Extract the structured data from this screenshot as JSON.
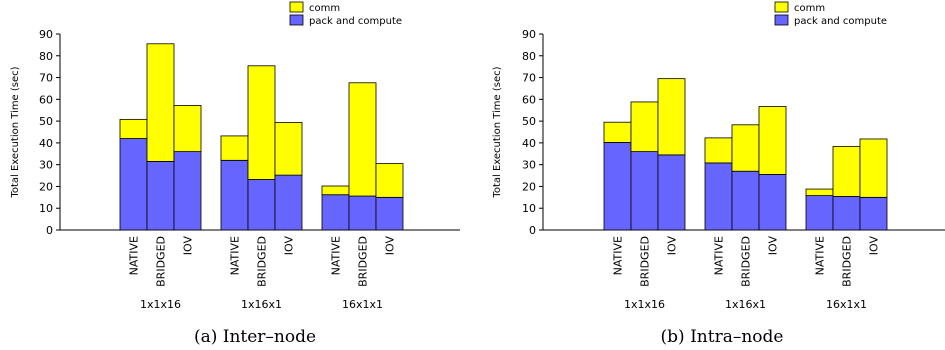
{
  "legend": {
    "items": [
      {
        "label": "comm",
        "color": "#ffff00"
      },
      {
        "label": "pack and compute",
        "color": "#6666ff"
      }
    ]
  },
  "chart_data": [
    {
      "type": "bar",
      "stacked": true,
      "caption": "(a) Inter–node",
      "ylabel": "Total Execution Time (sec)",
      "ylim": [
        0,
        90
      ],
      "yticks": [
        0,
        10,
        20,
        30,
        40,
        50,
        60,
        70,
        80,
        90
      ],
      "groups": [
        {
          "label": "1x1x16",
          "bars": [
            {
              "label": "NATIVE",
              "pack_and_compute": 42,
              "comm": 8.8
            },
            {
              "label": "BRIDGED",
              "pack_and_compute": 31.5,
              "comm": 54
            },
            {
              "label": "IOV",
              "pack_and_compute": 36,
              "comm": 21.2
            }
          ]
        },
        {
          "label": "1x16x1",
          "bars": [
            {
              "label": "NATIVE",
              "pack_and_compute": 32,
              "comm": 11.2
            },
            {
              "label": "BRIDGED",
              "pack_and_compute": 23.2,
              "comm": 52.2
            },
            {
              "label": "IOV",
              "pack_and_compute": 25.2,
              "comm": 24.2
            }
          ]
        },
        {
          "label": "16x1x1",
          "bars": [
            {
              "label": "NATIVE",
              "pack_and_compute": 16.2,
              "comm": 4
            },
            {
              "label": "BRIDGED",
              "pack_and_compute": 15.6,
              "comm": 52
            },
            {
              "label": "IOV",
              "pack_and_compute": 15,
              "comm": 15.5
            }
          ]
        }
      ]
    },
    {
      "type": "bar",
      "stacked": true,
      "caption": "(b) Intra–node",
      "ylabel": "Total Execution Time (sec)",
      "ylim": [
        0,
        90
      ],
      "yticks": [
        0,
        10,
        20,
        30,
        40,
        50,
        60,
        70,
        80,
        90
      ],
      "groups": [
        {
          "label": "1x1x16",
          "bars": [
            {
              "label": "NATIVE",
              "pack_and_compute": 40.2,
              "comm": 9.3
            },
            {
              "label": "BRIDGED",
              "pack_and_compute": 36,
              "comm": 22.8
            },
            {
              "label": "IOV",
              "pack_and_compute": 34.5,
              "comm": 35
            }
          ]
        },
        {
          "label": "1x16x1",
          "bars": [
            {
              "label": "NATIVE",
              "pack_and_compute": 30.8,
              "comm": 11.5
            },
            {
              "label": "BRIDGED",
              "pack_and_compute": 27,
              "comm": 21.3
            },
            {
              "label": "IOV",
              "pack_and_compute": 25.5,
              "comm": 31.2
            }
          ]
        },
        {
          "label": "16x1x1",
          "bars": [
            {
              "label": "NATIVE",
              "pack_and_compute": 15.8,
              "comm": 3
            },
            {
              "label": "BRIDGED",
              "pack_and_compute": 15.4,
              "comm": 23
            },
            {
              "label": "IOV",
              "pack_and_compute": 15,
              "comm": 26.8
            }
          ]
        }
      ]
    }
  ]
}
